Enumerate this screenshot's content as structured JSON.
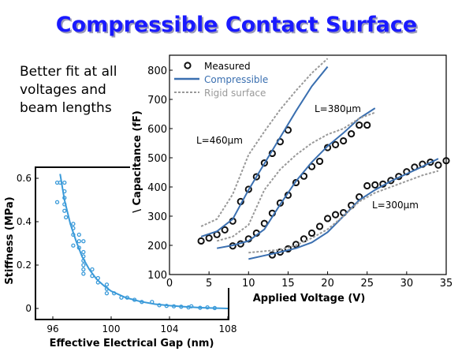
{
  "title": "Compressible Contact Surface",
  "note": "Better fit at all voltages and beam lengths",
  "chart_data": [
    {
      "type": "line",
      "xlabel": "Applied Voltage (V)",
      "ylabel": "\\ Capacitance (fF)",
      "xlim": [
        0,
        35
      ],
      "ylim": [
        100,
        850
      ],
      "xticks": [
        0,
        5,
        10,
        15,
        20,
        25,
        30,
        35
      ],
      "yticks": [
        100,
        200,
        300,
        400,
        500,
        600,
        700,
        800
      ],
      "legend": {
        "placement": "top-left",
        "entries": [
          "Measured",
          "Compressible",
          "Rigid surface"
        ]
      },
      "colors": {
        "measured": "#111111",
        "compressible": "#3a6fb0",
        "rigid": "#999999"
      },
      "annotations": [
        "L=460µm",
        "L=380µm",
        "L=300µm"
      ],
      "series": [
        {
          "name": "Measured",
          "curve": "L=460µm",
          "x": [
            4,
            5,
            6,
            7,
            8,
            9,
            10,
            11,
            12,
            13,
            14,
            15
          ],
          "y": [
            215,
            225,
            237,
            253,
            283,
            350,
            392,
            435,
            482,
            515,
            555,
            595
          ]
        },
        {
          "name": "Measured",
          "curve": "L=380µm",
          "x": [
            8,
            9,
            10,
            11,
            12,
            13,
            14,
            15,
            16,
            17,
            18,
            19,
            20,
            21,
            22,
            23,
            24,
            25
          ],
          "y": [
            198,
            205,
            222,
            242,
            275,
            310,
            345,
            372,
            415,
            437,
            470,
            488,
            535,
            545,
            558,
            582,
            612,
            612
          ]
        },
        {
          "name": "Measured",
          "curve": "L=300µm",
          "x": [
            13,
            14,
            15,
            16,
            17,
            18,
            19,
            20,
            21,
            22,
            23,
            24,
            25,
            26,
            27,
            28,
            29,
            30,
            31,
            32,
            33,
            34,
            35
          ],
          "y": [
            167,
            177,
            188,
            203,
            222,
            242,
            265,
            292,
            305,
            312,
            337,
            366,
            404,
            407,
            410,
            422,
            436,
            452,
            468,
            478,
            485,
            475,
            490
          ]
        },
        {
          "name": "Compressible",
          "curve": "L=460µm",
          "x": [
            4,
            6,
            8,
            10,
            12,
            14,
            16,
            18,
            20
          ],
          "y": [
            230,
            248,
            290,
            390,
            480,
            570,
            660,
            745,
            812
          ]
        },
        {
          "name": "Compressible",
          "curve": "L=380µm",
          "x": [
            6,
            8,
            10,
            12,
            14,
            16,
            18,
            20,
            22,
            24,
            26
          ],
          "y": [
            190,
            200,
            215,
            255,
            340,
            420,
            485,
            540,
            585,
            635,
            670
          ]
        },
        {
          "name": "Compressible",
          "curve": "L=300µm",
          "x": [
            10,
            12,
            14,
            16,
            18,
            20,
            22,
            24,
            26,
            28,
            30,
            32,
            34
          ],
          "y": [
            153,
            165,
            177,
            190,
            210,
            245,
            300,
            355,
            390,
            420,
            445,
            470,
            497
          ]
        },
        {
          "name": "Rigid surface",
          "curve": "L=460µm",
          "x": [
            4,
            6,
            8,
            10,
            12,
            14,
            16,
            18,
            20
          ],
          "y": [
            265,
            290,
            375,
            510,
            590,
            665,
            730,
            790,
            840
          ]
        },
        {
          "name": "Rigid surface",
          "curve": "L=380µm",
          "x": [
            6,
            8,
            10,
            12,
            14,
            16,
            18,
            20,
            22,
            24,
            26
          ],
          "y": [
            215,
            230,
            270,
            390,
            460,
            510,
            550,
            580,
            600,
            635,
            655
          ]
        },
        {
          "name": "Rigid surface",
          "curve": "L=300µm",
          "x": [
            10,
            12,
            14,
            16,
            18,
            20,
            22,
            24,
            26,
            28,
            30,
            32,
            34
          ],
          "y": [
            175,
            180,
            185,
            200,
            225,
            255,
            300,
            350,
            380,
            400,
            420,
            440,
            455
          ]
        }
      ]
    },
    {
      "type": "scatter",
      "xlabel": "Effective Electrical Gap (nm)",
      "ylabel": "Stiffness (MPa)",
      "xlim": [
        95,
        108
      ],
      "ylim": [
        -0.05,
        0.65
      ],
      "xticks": [
        96,
        100,
        104,
        108
      ],
      "yticks": [
        0,
        0.2,
        0.4,
        0.6
      ],
      "color": "#3a9ad9",
      "points": {
        "x": [
          96.3,
          96.3,
          96.5,
          96.8,
          96.8,
          96.8,
          96.8,
          96.8,
          96.9,
          97.4,
          97.4,
          97.4,
          97.4,
          97.8,
          97.8,
          97.8,
          98.1,
          98.1,
          98.1,
          98.1,
          98.1,
          98.1,
          98.1,
          98.7,
          98.7,
          99.1,
          99.1,
          99.7,
          99.7,
          99.7,
          100.2,
          100.7,
          101.1,
          101.6,
          102.1,
          102.8,
          103.3,
          103.8,
          104.3,
          104.8,
          105.3,
          105.5,
          106.1,
          106.6,
          107.1
        ],
        "y": [
          0.49,
          0.58,
          0.58,
          0.58,
          0.54,
          0.51,
          0.48,
          0.45,
          0.42,
          0.39,
          0.37,
          0.34,
          0.29,
          0.34,
          0.31,
          0.28,
          0.31,
          0.26,
          0.24,
          0.22,
          0.2,
          0.18,
          0.16,
          0.18,
          0.15,
          0.14,
          0.12,
          0.11,
          0.09,
          0.07,
          0.07,
          0.05,
          0.05,
          0.04,
          0.03,
          0.03,
          0.015,
          0.012,
          0.01,
          0.008,
          0.005,
          0.01,
          0.003,
          0.005,
          0.002
        ]
      },
      "fit": {
        "x": [
          96.5,
          96.8,
          97.2,
          97.6,
          98,
          98.5,
          99,
          99.5,
          100,
          101,
          102,
          103,
          104,
          105,
          106,
          107,
          108
        ],
        "y": [
          0.62,
          0.5,
          0.39,
          0.31,
          0.24,
          0.18,
          0.135,
          0.105,
          0.08,
          0.05,
          0.032,
          0.02,
          0.013,
          0.008,
          0.004,
          0.002,
          0
        ]
      }
    }
  ]
}
